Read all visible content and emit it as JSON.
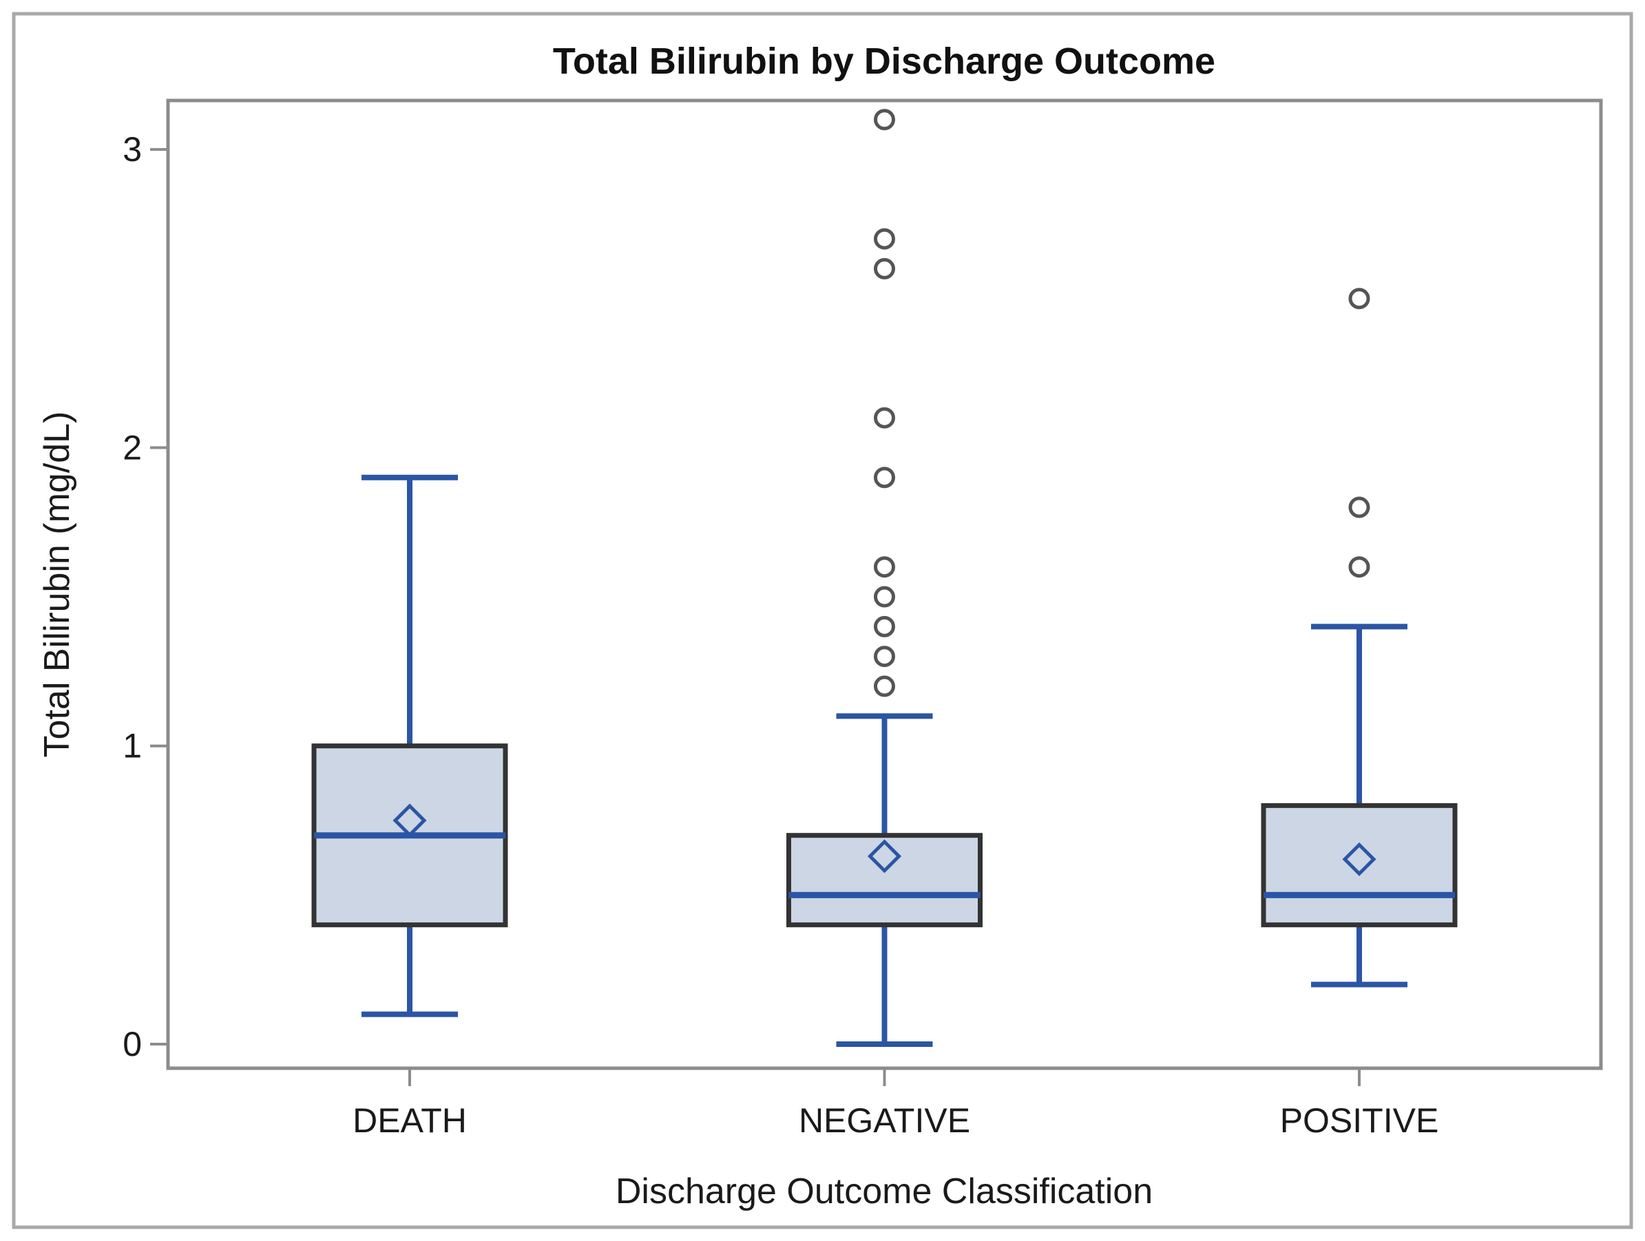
{
  "chart_data": {
    "type": "boxplot",
    "title": "Total Bilirubin by Discharge Outcome",
    "xlabel": "Discharge Outcome Classification",
    "ylabel": "Total Bilirubin (mg/dL)",
    "categories": [
      "DEATH",
      "NEGATIVE",
      "POSITIVE"
    ],
    "y_ticks": [
      "0",
      "1",
      "2",
      "3"
    ],
    "y_tick_values": [
      0,
      1,
      2,
      3
    ],
    "ylim": [
      -0.08,
      3.16
    ],
    "grid": false,
    "legend": "none",
    "series": [
      {
        "category": "DEATH",
        "whisker_low": 0.1,
        "q1": 0.4,
        "median": 0.7,
        "q3": 1.0,
        "whisker_high": 1.9,
        "mean": 0.75,
        "outliers": []
      },
      {
        "category": "NEGATIVE",
        "whisker_low": 0.0,
        "q1": 0.4,
        "median": 0.5,
        "q3": 0.7,
        "whisker_high": 1.1,
        "mean": 0.63,
        "outliers": [
          1.2,
          1.3,
          1.4,
          1.5,
          1.6,
          1.9,
          2.1,
          2.6,
          2.7,
          3.1
        ]
      },
      {
        "category": "POSITIVE",
        "whisker_low": 0.2,
        "q1": 0.4,
        "median": 0.5,
        "q3": 0.8,
        "whisker_high": 1.4,
        "mean": 0.62,
        "outliers": [
          1.6,
          1.8,
          2.5
        ]
      }
    ],
    "colors": {
      "box_fill": "#ccd6e4",
      "box_border": "#333333",
      "whisker_blue": "#2b55a5",
      "outlier_stroke": "#555555",
      "plot_frame": "#8c8c8c",
      "outer_border": "#a9a9a9",
      "text": "#1a1a1a",
      "background": "#ffffff"
    }
  }
}
